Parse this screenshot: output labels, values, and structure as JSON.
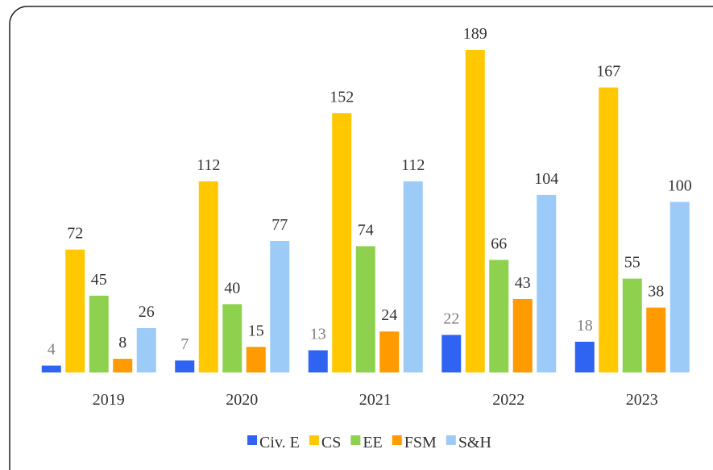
{
  "chart_data": {
    "type": "bar",
    "categories": [
      "2019",
      "2020",
      "2021",
      "2022",
      "2023"
    ],
    "series": [
      {
        "name": "Civ. E",
        "color": "#2f63f2",
        "values": [
          4,
          7,
          13,
          22,
          18
        ]
      },
      {
        "name": "CS",
        "color": "#ffc800",
        "values": [
          72,
          112,
          152,
          189,
          167
        ]
      },
      {
        "name": "EE",
        "color": "#8ed14f",
        "values": [
          45,
          40,
          74,
          66,
          55
        ]
      },
      {
        "name": "FSM",
        "color": "#ff9a00",
        "values": [
          8,
          15,
          24,
          43,
          38
        ]
      },
      {
        "name": "S&H",
        "color": "#9dcbf7",
        "values": [
          26,
          77,
          112,
          104,
          100
        ]
      }
    ],
    "legend": "bottom"
  }
}
